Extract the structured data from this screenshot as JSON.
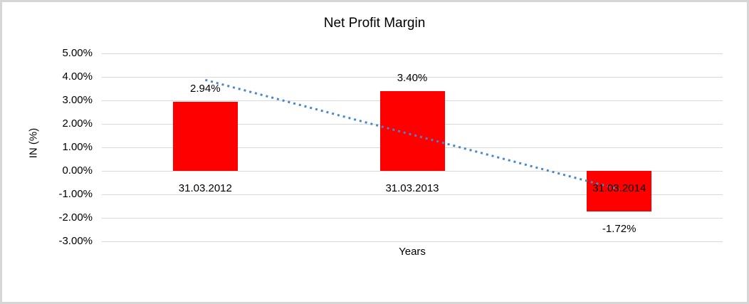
{
  "chart_data": {
    "type": "bar",
    "title": "Net Profit Margin",
    "xlabel": "Years",
    "ylabel": "IN (%)",
    "categories": [
      "31.03.2012",
      "31.03.2013",
      "31.03.2014"
    ],
    "values": [
      2.94,
      3.4,
      -1.72
    ],
    "data_labels": [
      "2.94%",
      "3.40%",
      "-1.72%"
    ],
    "yticks": [
      5,
      4,
      3,
      2,
      1,
      0,
      -1,
      -2,
      -3
    ],
    "ytick_labels": [
      "5.00%",
      "4.00%",
      "3.00%",
      "2.00%",
      "1.00%",
      "0.00%",
      "-1.00%",
      "-2.00%",
      "-3.00%"
    ],
    "ylim": [
      -3,
      5
    ],
    "grid": true,
    "legend": "none",
    "bar_color": "#ff0000",
    "trendline": {
      "style": "dotted",
      "color": "#4a86c8",
      "start_percent": 3.87,
      "end_percent": -0.79,
      "start_category_index": 0,
      "end_category_index": 2
    }
  },
  "colors": {
    "gridline": "#d9d9d9",
    "text": "#000000",
    "frame_border": "#d6d6d6",
    "background": "#ffffff"
  }
}
